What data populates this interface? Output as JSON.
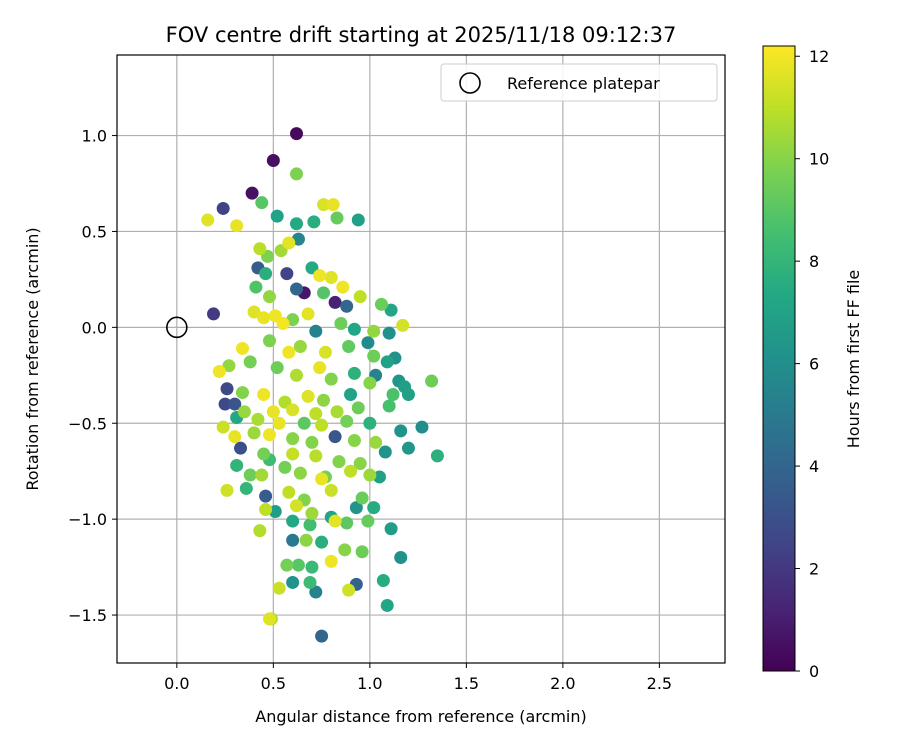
{
  "chart_data": {
    "type": "scatter",
    "title": "FOV centre drift starting at 2025/11/18 09:12:37",
    "xlabel": "Angular distance from reference (arcmin)",
    "ylabel": "Rotation from reference (arcmin)",
    "xlim": [
      -0.31,
      2.84
    ],
    "ylim": [
      -1.75,
      1.42
    ],
    "grid": true,
    "x_ticks": [
      0.0,
      0.5,
      1.0,
      1.5,
      2.0,
      2.5
    ],
    "x_tick_labels": [
      "0.0",
      "0.5",
      "1.0",
      "1.5",
      "2.0",
      "2.5"
    ],
    "y_ticks": [
      1.0,
      0.5,
      0.0,
      -0.5,
      -1.0,
      -1.5
    ],
    "y_tick_labels": [
      "1.0",
      "0.5",
      "0.0",
      "−0.5",
      "−1.0",
      "−1.5"
    ],
    "legend": {
      "placement": "top-right",
      "entries": [
        {
          "label": "Reference platepar",
          "marker": "open-circle"
        }
      ]
    },
    "reference_point": {
      "x": 0.0,
      "y": 0.0
    },
    "colorbar": {
      "label": "Hours from first FF file",
      "colormap": "viridis",
      "range": [
        0,
        12.2
      ],
      "ticks": [
        0,
        2,
        4,
        6,
        8,
        10,
        12
      ],
      "tick_labels": [
        "0",
        "2",
        "4",
        "6",
        "8",
        "10",
        "12"
      ]
    },
    "series": [
      {
        "name": "FF file positions",
        "columns": [
          "x",
          "y",
          "hours"
        ],
        "points": [
          [
            0.62,
            1.01,
            0.3
          ],
          [
            0.5,
            0.87,
            0.5
          ],
          [
            0.39,
            0.7,
            0.6
          ],
          [
            0.24,
            0.62,
            2.4
          ],
          [
            0.62,
            0.8,
            9.8
          ],
          [
            0.44,
            0.65,
            9.0
          ],
          [
            0.16,
            0.56,
            11.6
          ],
          [
            0.31,
            0.53,
            11.8
          ],
          [
            0.52,
            0.58,
            7.0
          ],
          [
            0.62,
            0.54,
            7.4
          ],
          [
            0.71,
            0.55,
            7.6
          ],
          [
            0.76,
            0.64,
            11.5
          ],
          [
            0.81,
            0.64,
            11.8
          ],
          [
            0.83,
            0.57,
            9.3
          ],
          [
            0.94,
            0.56,
            6.9
          ],
          [
            0.63,
            0.46,
            5.6
          ],
          [
            0.58,
            0.44,
            11.7
          ],
          [
            0.54,
            0.4,
            10.5
          ],
          [
            0.43,
            0.41,
            10.9
          ],
          [
            0.47,
            0.37,
            9.8
          ],
          [
            0.42,
            0.31,
            3.6
          ],
          [
            0.46,
            0.28,
            7.6
          ],
          [
            0.57,
            0.28,
            2.5
          ],
          [
            0.7,
            0.31,
            7.4
          ],
          [
            0.74,
            0.27,
            11.9
          ],
          [
            0.8,
            0.26,
            11.6
          ],
          [
            0.86,
            0.21,
            11.9
          ],
          [
            0.19,
            0.07,
            2.1
          ],
          [
            0.41,
            0.21,
            8.8
          ],
          [
            0.48,
            0.16,
            10.2
          ],
          [
            0.62,
            0.2,
            4.0
          ],
          [
            0.66,
            0.18,
            0.8
          ],
          [
            0.76,
            0.18,
            8.9
          ],
          [
            0.82,
            0.13,
            1.2
          ],
          [
            0.88,
            0.11,
            4.0
          ],
          [
            0.95,
            0.16,
            11.0
          ],
          [
            1.06,
            0.12,
            9.4
          ],
          [
            1.11,
            0.09,
            7.2
          ],
          [
            1.17,
            0.01,
            11.4
          ],
          [
            0.4,
            0.08,
            11.6
          ],
          [
            0.45,
            0.05,
            11.8
          ],
          [
            0.51,
            0.06,
            11.9
          ],
          [
            0.55,
            0.02,
            12.0
          ],
          [
            0.6,
            0.04,
            9.8
          ],
          [
            0.68,
            0.07,
            11.7
          ],
          [
            0.72,
            -0.02,
            5.4
          ],
          [
            0.85,
            0.02,
            9.5
          ],
          [
            0.92,
            -0.01,
            7.2
          ],
          [
            1.02,
            -0.02,
            10.2
          ],
          [
            1.1,
            -0.03,
            6.1
          ],
          [
            0.34,
            -0.11,
            11.9
          ],
          [
            0.48,
            -0.07,
            9.8
          ],
          [
            0.58,
            -0.13,
            11.9
          ],
          [
            0.64,
            -0.1,
            10.3
          ],
          [
            0.77,
            -0.13,
            11.5
          ],
          [
            0.89,
            -0.1,
            9.2
          ],
          [
            0.99,
            -0.08,
            5.8
          ],
          [
            1.02,
            -0.15,
            9.5
          ],
          [
            1.09,
            -0.18,
            7.0
          ],
          [
            1.13,
            -0.16,
            6.2
          ],
          [
            0.22,
            -0.23,
            11.9
          ],
          [
            0.27,
            -0.2,
            10.2
          ],
          [
            0.38,
            -0.18,
            9.6
          ],
          [
            0.52,
            -0.21,
            9.5
          ],
          [
            0.62,
            -0.25,
            10.7
          ],
          [
            0.74,
            -0.21,
            11.8
          ],
          [
            0.8,
            -0.27,
            9.9
          ],
          [
            0.92,
            -0.24,
            7.8
          ],
          [
            1.0,
            -0.29,
            10.0
          ],
          [
            1.03,
            -0.25,
            5.4
          ],
          [
            1.15,
            -0.28,
            6.4
          ],
          [
            1.18,
            -0.31,
            6.8
          ],
          [
            1.32,
            -0.28,
            9.5
          ],
          [
            0.26,
            -0.32,
            2.6
          ],
          [
            0.34,
            -0.34,
            9.9
          ],
          [
            0.45,
            -0.35,
            11.9
          ],
          [
            0.56,
            -0.39,
            10.8
          ],
          [
            0.68,
            -0.36,
            11.6
          ],
          [
            0.76,
            -0.38,
            10.1
          ],
          [
            0.9,
            -0.35,
            7.0
          ],
          [
            1.12,
            -0.35,
            8.7
          ],
          [
            1.2,
            -0.35,
            6.9
          ],
          [
            0.25,
            -0.4,
            2.7
          ],
          [
            0.3,
            -0.4,
            3.2
          ],
          [
            0.35,
            -0.44,
            10.3
          ],
          [
            0.5,
            -0.44,
            11.8
          ],
          [
            0.6,
            -0.43,
            11.5
          ],
          [
            0.72,
            -0.45,
            11.0
          ],
          [
            0.83,
            -0.44,
            10.6
          ],
          [
            0.94,
            -0.42,
            9.5
          ],
          [
            1.1,
            -0.41,
            8.6
          ],
          [
            0.31,
            -0.47,
            7.3
          ],
          [
            0.42,
            -0.48,
            10.6
          ],
          [
            0.53,
            -0.5,
            11.8
          ],
          [
            0.66,
            -0.5,
            9.1
          ],
          [
            0.75,
            -0.51,
            11.0
          ],
          [
            0.88,
            -0.49,
            9.6
          ],
          [
            1.0,
            -0.5,
            7.8
          ],
          [
            1.16,
            -0.54,
            6.2
          ],
          [
            1.27,
            -0.52,
            5.9
          ],
          [
            0.24,
            -0.52,
            11.2
          ],
          [
            0.3,
            -0.57,
            11.8
          ],
          [
            0.4,
            -0.55,
            10.4
          ],
          [
            0.48,
            -0.56,
            11.9
          ],
          [
            0.6,
            -0.58,
            10.0
          ],
          [
            0.7,
            -0.6,
            9.9
          ],
          [
            0.82,
            -0.57,
            3.3
          ],
          [
            0.92,
            -0.59,
            10.0
          ],
          [
            1.03,
            -0.6,
            10.3
          ],
          [
            1.2,
            -0.63,
            6.4
          ],
          [
            1.35,
            -0.67,
            7.7
          ],
          [
            0.33,
            -0.63,
            3.0
          ],
          [
            0.45,
            -0.66,
            9.6
          ],
          [
            0.48,
            -0.69,
            8.4
          ],
          [
            0.6,
            -0.66,
            11.1
          ],
          [
            0.72,
            -0.67,
            10.9
          ],
          [
            0.84,
            -0.7,
            9.9
          ],
          [
            0.95,
            -0.71,
            10.0
          ],
          [
            1.08,
            -0.65,
            6.2
          ],
          [
            0.31,
            -0.72,
            7.9
          ],
          [
            0.38,
            -0.77,
            9.5
          ],
          [
            0.44,
            -0.77,
            10.5
          ],
          [
            0.56,
            -0.73,
            9.6
          ],
          [
            0.64,
            -0.76,
            10.1
          ],
          [
            0.77,
            -0.78,
            9.7
          ],
          [
            0.9,
            -0.75,
            11.0
          ],
          [
            1.0,
            -0.77,
            10.4
          ],
          [
            1.05,
            -0.78,
            6.9
          ],
          [
            0.26,
            -0.85,
            11.3
          ],
          [
            0.36,
            -0.84,
            8.0
          ],
          [
            0.46,
            -0.88,
            3.5
          ],
          [
            0.58,
            -0.86,
            11.0
          ],
          [
            0.66,
            -0.9,
            9.9
          ],
          [
            0.75,
            -0.79,
            11.8
          ],
          [
            0.8,
            -0.85,
            11.2
          ],
          [
            0.96,
            -0.89,
            9.4
          ],
          [
            0.46,
            -0.95,
            11.0
          ],
          [
            0.51,
            -0.96,
            6.8
          ],
          [
            0.62,
            -0.93,
            11.4
          ],
          [
            0.7,
            -0.97,
            10.4
          ],
          [
            0.8,
            -0.99,
            7.1
          ],
          [
            0.93,
            -0.94,
            6.3
          ],
          [
            1.02,
            -0.94,
            7.5
          ],
          [
            0.43,
            -1.06,
            10.8
          ],
          [
            0.6,
            -1.01,
            7.3
          ],
          [
            0.69,
            -1.03,
            8.5
          ],
          [
            0.82,
            -1.01,
            11.7
          ],
          [
            0.88,
            -1.02,
            9.1
          ],
          [
            0.99,
            -1.01,
            9.3
          ],
          [
            1.11,
            -1.05,
            6.8
          ],
          [
            0.6,
            -1.11,
            5.0
          ],
          [
            0.67,
            -1.11,
            10.1
          ],
          [
            0.75,
            -1.12,
            7.6
          ],
          [
            0.87,
            -1.16,
            10.0
          ],
          [
            0.96,
            -1.17,
            9.5
          ],
          [
            1.16,
            -1.2,
            6.1
          ],
          [
            0.57,
            -1.24,
            9.6
          ],
          [
            0.63,
            -1.24,
            9.0
          ],
          [
            0.7,
            -1.25,
            8.2
          ],
          [
            0.8,
            -1.22,
            11.9
          ],
          [
            0.6,
            -1.33,
            6.2
          ],
          [
            0.69,
            -1.33,
            8.3
          ],
          [
            0.72,
            -1.38,
            5.4
          ],
          [
            0.89,
            -1.37,
            11.3
          ],
          [
            0.93,
            -1.34,
            3.8
          ],
          [
            1.07,
            -1.32,
            7.5
          ],
          [
            0.53,
            -1.36,
            11.2
          ],
          [
            0.48,
            -1.52,
            11.6
          ],
          [
            1.09,
            -1.45,
            7.2
          ],
          [
            0.75,
            -1.61,
            4.0
          ],
          [
            0.49,
            -1.52,
            10.7
          ]
        ]
      }
    ]
  }
}
